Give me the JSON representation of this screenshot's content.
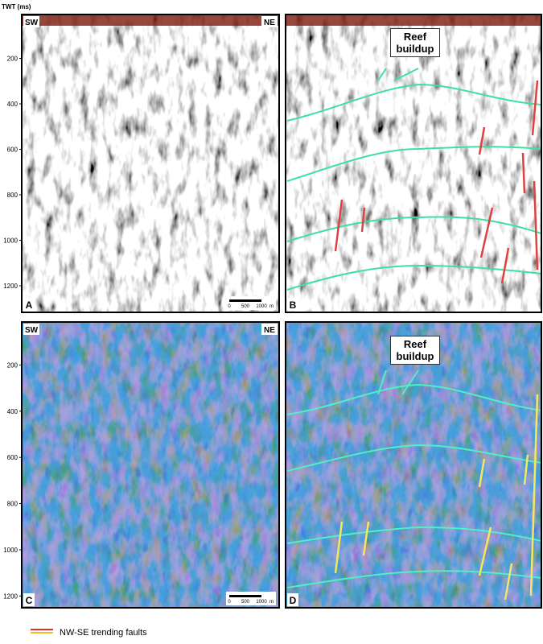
{
  "axis_label": "TWT (ms)",
  "yticks": [
    200,
    400,
    600,
    800,
    1000,
    1200
  ],
  "panels": [
    {
      "label": "A",
      "left": "SW",
      "right": "NE",
      "scale_bar": {
        "ticks": [
          0,
          500,
          1000
        ],
        "unit": "m"
      }
    },
    {
      "label": "B",
      "annotation": "Reef buildup"
    },
    {
      "label": "C",
      "left": "SW",
      "right": "NE",
      "scale_bar": {
        "ticks": [
          0,
          500,
          1000
        ],
        "unit": "m"
      }
    },
    {
      "label": "D",
      "annotation": "Reef buildup"
    }
  ],
  "legend": "NW-SE trending faults"
}
